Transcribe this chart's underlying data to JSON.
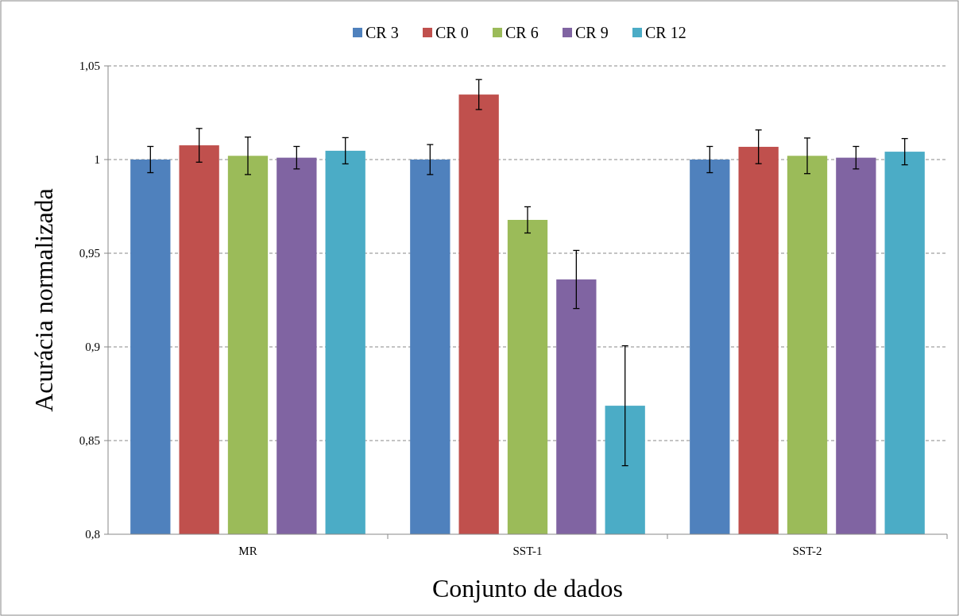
{
  "chart_data": {
    "type": "bar",
    "xlabel": "Conjunto de dados",
    "ylabel": "Acurácia normalizada",
    "categories": [
      "MR",
      "SST-1",
      "SST-2"
    ],
    "series": [
      {
        "name": "CR 3",
        "color": "#4f81bd",
        "values": [
          1.0,
          1.0,
          1.0
        ],
        "errors": [
          0.007,
          0.008,
          0.007
        ]
      },
      {
        "name": "CR 0",
        "color": "#c0504d",
        "values": [
          1.0076,
          1.0347,
          1.0068
        ],
        "errors": [
          0.009,
          0.008,
          0.009
        ]
      },
      {
        "name": "CR 6",
        "color": "#9bbb59",
        "values": [
          1.002,
          0.9678,
          1.002
        ],
        "errors": [
          0.01,
          0.007,
          0.0095
        ]
      },
      {
        "name": "CR 9",
        "color": "#8064a2",
        "values": [
          1.001,
          0.936,
          1.001
        ],
        "errors": [
          0.006,
          0.0155,
          0.006
        ]
      },
      {
        "name": "CR 12",
        "color": "#4bacc6",
        "values": [
          1.0047,
          0.8686,
          1.0042
        ],
        "errors": [
          0.007,
          0.032,
          0.007
        ]
      }
    ],
    "ylim": [
      0.8,
      1.05
    ],
    "yticks": [
      {
        "value": 0.8,
        "label": "0,8"
      },
      {
        "value": 0.85,
        "label": "0,85"
      },
      {
        "value": 0.9,
        "label": "0,9"
      },
      {
        "value": 0.95,
        "label": "0,95"
      },
      {
        "value": 1,
        "label": "1"
      },
      {
        "value": 1.05,
        "label": "1,05"
      }
    ],
    "grid": "y",
    "legend": "top"
  }
}
